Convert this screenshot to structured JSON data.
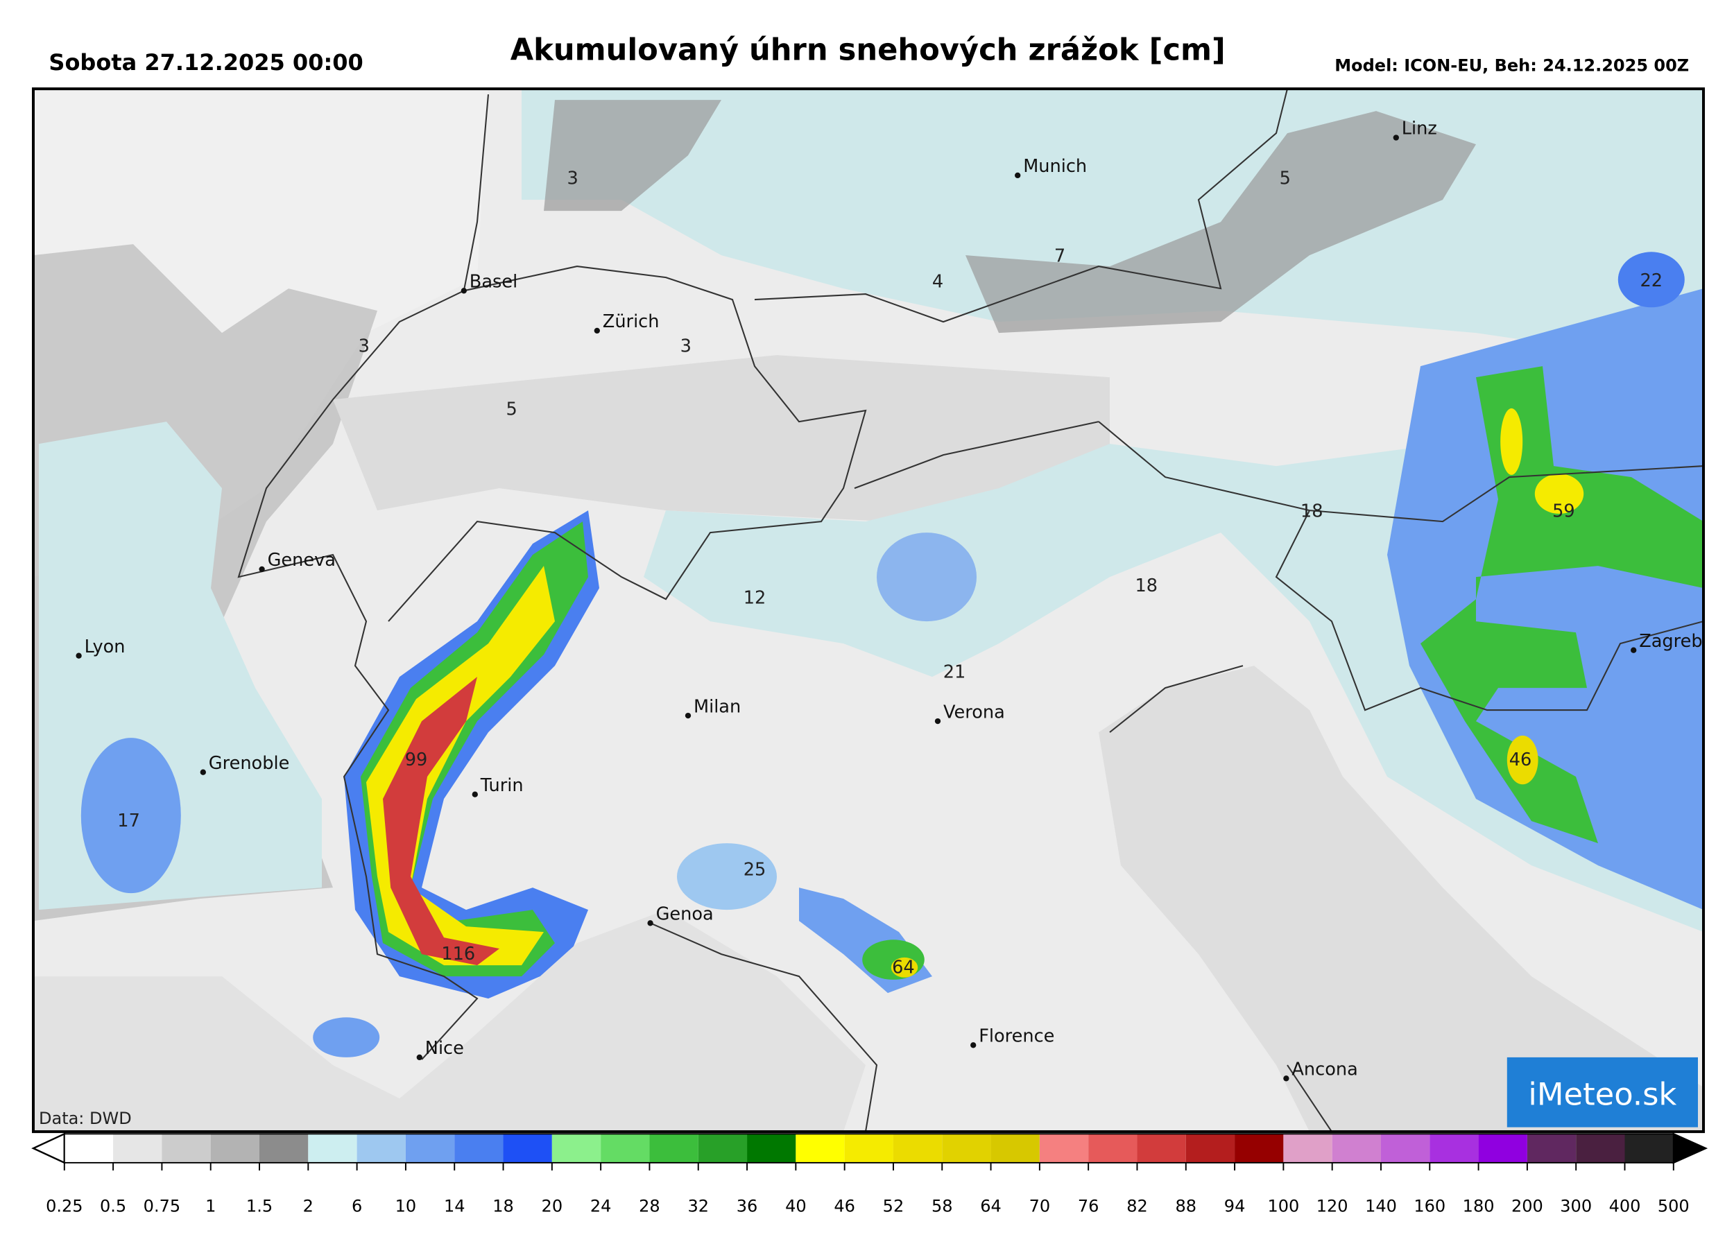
{
  "header": {
    "date": "Sobota 27.12.2025 00:00",
    "title": "Akumulovaný úhrn snehových zrážok [cm]",
    "model": "Model: ICON-EU, Beh: 24.12.2025 00Z"
  },
  "cities": [
    "Linz",
    "Munich",
    "Basel",
    "Zürich",
    "Geneva",
    "Lyon",
    "Grenoble",
    "Turin",
    "Milan",
    "Verona",
    "Genoa",
    "Nice",
    "Florence",
    "Ancona",
    "Zagreb"
  ],
  "map_values": [
    3,
    5,
    7,
    4,
    3,
    3,
    5,
    22,
    18,
    59,
    12,
    18,
    21,
    17,
    99,
    25,
    116,
    64,
    46
  ],
  "colorbar": {
    "labels": [
      0.25,
      0.5,
      0.75,
      1,
      1.5,
      2,
      6,
      10,
      14,
      18,
      20,
      24,
      28,
      32,
      36,
      40,
      46,
      52,
      58,
      64,
      70,
      76,
      82,
      88,
      94,
      100,
      120,
      140,
      160,
      180,
      200,
      300,
      400,
      500
    ],
    "colors": [
      "#ffffff",
      "#e6e6e6",
      "#cccccc",
      "#b3b3b3",
      "#8c8c8c",
      "#cdeef0",
      "#9ec8f0",
      "#6fa0f0",
      "#4a7ff0",
      "#1e50f5",
      "#8cf08c",
      "#64dc64",
      "#3cbe3c",
      "#28a028",
      "#007800",
      "#ffff00",
      "#f5eb00",
      "#ebdc00",
      "#e1d200",
      "#d7c800",
      "#f58080",
      "#e65a5a",
      "#d23c3c",
      "#b41e1e",
      "#960000",
      "#e0a0c8",
      "#d080d0",
      "#c060d8",
      "#a830e0",
      "#9000e0",
      "#602860",
      "#4a2040",
      "#222222"
    ]
  },
  "credit": "Data: DWD",
  "logo": "iMeteo.sk"
}
